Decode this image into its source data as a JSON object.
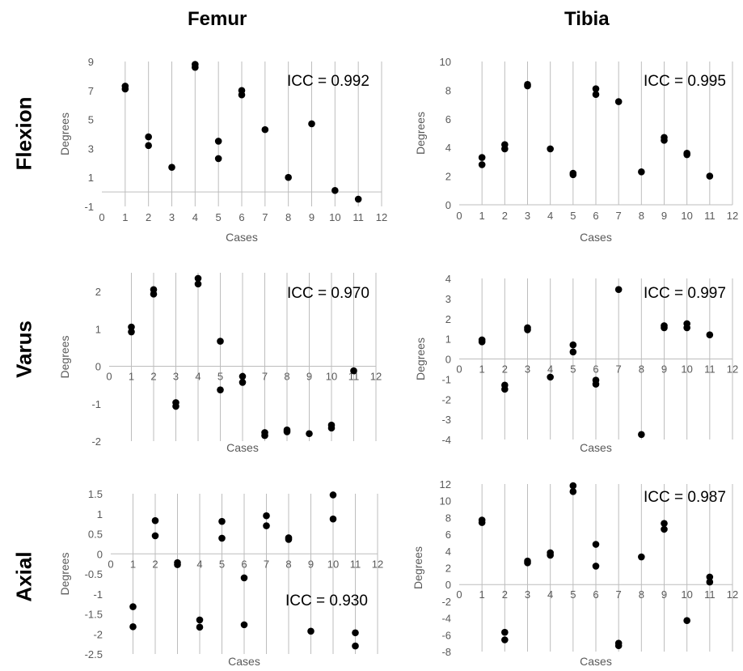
{
  "column_titles": [
    "Femur",
    "Tibia"
  ],
  "row_titles": [
    "Flexion",
    "Varus",
    "Axial"
  ],
  "chart_data": [
    {
      "type": "scatter",
      "bone": "Femur",
      "motion": "Flexion",
      "xlabel": "Cases",
      "ylabel": "Degrees",
      "annotation": "ICC = 0.992",
      "xlim": [
        0,
        12
      ],
      "ylim": [
        -1,
        9
      ],
      "xticks": [
        0,
        1,
        2,
        3,
        4,
        5,
        6,
        7,
        8,
        9,
        10,
        11,
        12
      ],
      "yticks": [
        -1,
        1,
        3,
        5,
        7,
        9
      ],
      "x_axis_at": 0,
      "x_tick_labels_position": "bottom",
      "grid": "vertical",
      "points": [
        [
          1,
          7.3
        ],
        [
          1,
          7.1
        ],
        [
          2,
          3.8
        ],
        [
          2,
          3.2
        ],
        [
          3,
          1.7
        ],
        [
          4,
          8.8
        ],
        [
          4,
          8.6
        ],
        [
          5,
          3.5
        ],
        [
          5,
          2.3
        ],
        [
          6,
          7.0
        ],
        [
          6,
          6.7
        ],
        [
          7,
          4.3
        ],
        [
          8,
          1.0
        ],
        [
          9,
          4.7
        ],
        [
          10,
          0.1
        ],
        [
          11,
          -0.5
        ]
      ]
    },
    {
      "type": "scatter",
      "bone": "Tibia",
      "motion": "Flexion",
      "xlabel": "Cases",
      "ylabel": "Degrees",
      "annotation": "ICC = 0.995",
      "xlim": [
        0,
        12
      ],
      "ylim": [
        0,
        10
      ],
      "xticks": [
        0,
        1,
        2,
        3,
        4,
        5,
        6,
        7,
        8,
        9,
        10,
        11,
        12
      ],
      "yticks": [
        0,
        2,
        4,
        6,
        8,
        10
      ],
      "x_axis_at": 0,
      "x_tick_labels_position": "bottom",
      "grid": "vertical",
      "points": [
        [
          1,
          3.3
        ],
        [
          1,
          2.8
        ],
        [
          2,
          4.2
        ],
        [
          2,
          3.9
        ],
        [
          3,
          8.4
        ],
        [
          3,
          8.3
        ],
        [
          4,
          3.9
        ],
        [
          5,
          2.2
        ],
        [
          5,
          2.1
        ],
        [
          6,
          8.1
        ],
        [
          6,
          7.7
        ],
        [
          7,
          7.2
        ],
        [
          8,
          2.3
        ],
        [
          9,
          4.7
        ],
        [
          9,
          4.5
        ],
        [
          10,
          3.6
        ],
        [
          10,
          3.5
        ],
        [
          11,
          2.0
        ]
      ]
    },
    {
      "type": "scatter",
      "bone": "Femur",
      "motion": "Varus",
      "xlabel": "Cases",
      "ylabel": "Degrees",
      "annotation": "ICC = 0.970",
      "xlim": [
        0,
        12
      ],
      "ylim": [
        -2,
        2.5
      ],
      "xticks": [
        0,
        1,
        2,
        3,
        4,
        5,
        6,
        7,
        8,
        9,
        10,
        11,
        12
      ],
      "yticks": [
        -2,
        -1,
        0,
        1,
        2
      ],
      "x_axis_at": 0,
      "x_tick_labels_position": "axis",
      "grid": "vertical",
      "points": [
        [
          1,
          1.05
        ],
        [
          1,
          0.92
        ],
        [
          2,
          2.05
        ],
        [
          2,
          1.93
        ],
        [
          3,
          -0.97
        ],
        [
          3,
          -1.07
        ],
        [
          4,
          2.35
        ],
        [
          4,
          2.2
        ],
        [
          5,
          0.67
        ],
        [
          5,
          -0.63
        ],
        [
          6,
          -0.27
        ],
        [
          6,
          -0.43
        ],
        [
          7,
          -1.77
        ],
        [
          7,
          -1.85
        ],
        [
          8,
          -1.7
        ],
        [
          8,
          -1.75
        ],
        [
          9,
          -1.8
        ],
        [
          10,
          -1.57
        ],
        [
          10,
          -1.65
        ],
        [
          11,
          -0.12
        ]
      ]
    },
    {
      "type": "scatter",
      "bone": "Tibia",
      "motion": "Varus",
      "xlabel": "Cases",
      "ylabel": "Degrees",
      "annotation": "ICC = 0.997",
      "xlim": [
        0,
        12
      ],
      "ylim": [
        -4,
        4
      ],
      "xticks": [
        0,
        1,
        2,
        3,
        4,
        5,
        6,
        7,
        8,
        9,
        10,
        11,
        12
      ],
      "yticks": [
        -4,
        -3,
        -2,
        -1,
        0,
        1,
        2,
        3,
        4
      ],
      "x_axis_at": 0,
      "x_tick_labels_position": "axis",
      "grid": "vertical",
      "points": [
        [
          1,
          0.95
        ],
        [
          1,
          0.85
        ],
        [
          2,
          -1.3
        ],
        [
          2,
          -1.5
        ],
        [
          3,
          1.55
        ],
        [
          3,
          1.45
        ],
        [
          4,
          -0.9
        ],
        [
          5,
          0.7
        ],
        [
          5,
          0.35
        ],
        [
          6,
          -1.05
        ],
        [
          6,
          -1.25
        ],
        [
          7,
          3.45
        ],
        [
          8,
          -3.75
        ],
        [
          9,
          1.65
        ],
        [
          9,
          1.55
        ],
        [
          10,
          1.75
        ],
        [
          10,
          1.55
        ],
        [
          11,
          1.2
        ]
      ]
    },
    {
      "type": "scatter",
      "bone": "Femur",
      "motion": "Axial",
      "xlabel": "Cases",
      "ylabel": "Degrees",
      "annotation": "ICC = 0.930",
      "xlim": [
        0,
        12
      ],
      "ylim": [
        -2.5,
        1.5
      ],
      "xticks": [
        0,
        1,
        2,
        3,
        4,
        5,
        6,
        7,
        8,
        9,
        10,
        11,
        12
      ],
      "yticks": [
        -2.5,
        -2,
        -1.5,
        -1,
        -0.5,
        0,
        0.5,
        1,
        1.5
      ],
      "x_axis_at": 0,
      "x_tick_labels_position": "axis",
      "grid": "vertical",
      "points": [
        [
          1,
          -1.32
        ],
        [
          1,
          -1.82
        ],
        [
          2,
          0.83
        ],
        [
          2,
          0.45
        ],
        [
          3,
          -0.22
        ],
        [
          3,
          -0.27
        ],
        [
          4,
          -1.65
        ],
        [
          4,
          -1.83
        ],
        [
          5,
          0.81
        ],
        [
          5,
          0.39
        ],
        [
          6,
          -0.6
        ],
        [
          6,
          -1.77
        ],
        [
          7,
          0.95
        ],
        [
          7,
          0.7
        ],
        [
          8,
          0.4
        ],
        [
          8,
          0.36
        ],
        [
          9,
          -1.93
        ],
        [
          10,
          1.47
        ],
        [
          10,
          0.87
        ],
        [
          11,
          -1.97
        ],
        [
          11,
          -2.3
        ]
      ]
    },
    {
      "type": "scatter",
      "bone": "Tibia",
      "motion": "Axial",
      "xlabel": "Cases",
      "ylabel": "Degrees",
      "annotation": "ICC = 0.987",
      "xlim": [
        0,
        12
      ],
      "ylim": [
        -8,
        12
      ],
      "xticks": [
        0,
        1,
        2,
        3,
        4,
        5,
        6,
        7,
        8,
        9,
        10,
        11,
        12
      ],
      "yticks": [
        -8,
        -6,
        -4,
        -2,
        0,
        2,
        4,
        6,
        8,
        10,
        12
      ],
      "x_axis_at": 0,
      "x_tick_labels_position": "axis",
      "grid": "vertical",
      "points": [
        [
          1,
          7.7
        ],
        [
          1,
          7.4
        ],
        [
          2,
          -5.7
        ],
        [
          2,
          -6.6
        ],
        [
          3,
          2.8
        ],
        [
          3,
          2.6
        ],
        [
          4,
          3.8
        ],
        [
          4,
          3.5
        ],
        [
          5,
          11.8
        ],
        [
          5,
          11.1
        ],
        [
          6,
          4.8
        ],
        [
          6,
          2.2
        ],
        [
          7,
          -7.0
        ],
        [
          7,
          -7.3
        ],
        [
          8,
          3.3
        ],
        [
          9,
          7.3
        ],
        [
          9,
          6.6
        ],
        [
          10,
          -4.3
        ],
        [
          11,
          0.9
        ],
        [
          11,
          0.3
        ]
      ]
    }
  ]
}
